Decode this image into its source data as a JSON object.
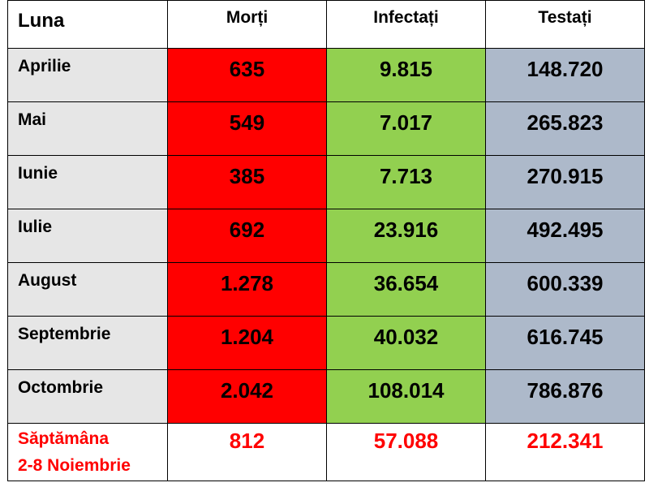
{
  "headers": {
    "month": "Luna",
    "deaths": "Morți",
    "infected": "Infectați",
    "tested": "Testați"
  },
  "rows": [
    {
      "month": "Aprilie",
      "deaths": "635",
      "infected": "9.815",
      "tested": "148.720"
    },
    {
      "month": "Mai",
      "deaths": "549",
      "infected": "7.017",
      "tested": "265.823"
    },
    {
      "month": "Iunie",
      "deaths": "385",
      "infected": "7.713",
      "tested": "270.915"
    },
    {
      "month": "Iulie",
      "deaths": "692",
      "infected": "23.916",
      "tested": "492.495"
    },
    {
      "month": "August",
      "deaths": "1.278",
      "infected": "36.654",
      "tested": "600.339"
    },
    {
      "month": "Septembrie",
      "deaths": "1.204",
      "infected": "40.032",
      "tested": "616.745"
    },
    {
      "month": "Octombrie",
      "deaths": "2.042",
      "infected": "108.014",
      "tested": "786.876"
    }
  ],
  "summary": {
    "label_line1": "Săptămâna",
    "label_line2": "2-8 Noiembrie",
    "deaths": "812",
    "infected": "57.088",
    "tested": "212.341"
  },
  "colors": {
    "deaths_fill": "#ff0000",
    "infected_fill": "#92d050",
    "tested_fill": "#adb9ca",
    "month_fill": "#e6e6e6",
    "summary_text": "#ff0000"
  }
}
